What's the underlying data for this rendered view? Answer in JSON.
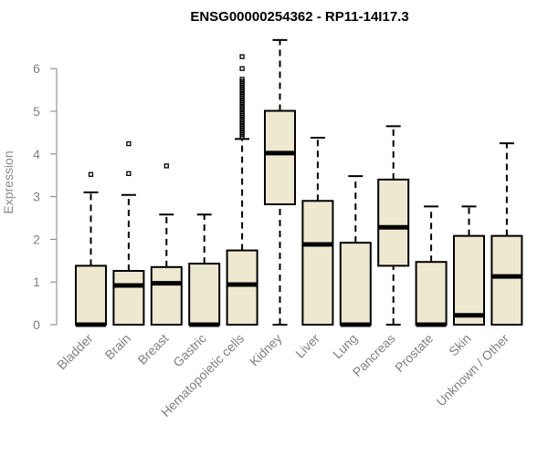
{
  "chart_data": {
    "type": "boxplot",
    "title": "ENSG00000254362 - RP11-14I17.3",
    "xlabel": "",
    "ylabel": "Expression",
    "ylim": [
      0,
      6.7
    ],
    "yticks": [
      "0",
      "1",
      "2",
      "3",
      "4",
      "5",
      "6"
    ],
    "box_fill": "#efe8d0",
    "box_stroke": "#000000",
    "axis_color": "#808080",
    "categories": [
      "Bladder",
      "Brain",
      "Breast",
      "Gastric",
      "Hematopoietic cells",
      "Kidney",
      "Liver",
      "Lung",
      "Pancreas",
      "Prostate",
      "Skin",
      "Unknown / Other"
    ],
    "boxes": [
      {
        "name": "Bladder",
        "min": 0,
        "q1": 0,
        "median": 0,
        "q3": 1.38,
        "max": 3.1,
        "outliers": [
          3.52
        ]
      },
      {
        "name": "Brain",
        "min": 0,
        "q1": 0,
        "median": 0.92,
        "q3": 1.26,
        "max": 3.04,
        "outliers": [
          3.54,
          4.24
        ]
      },
      {
        "name": "Breast",
        "min": 0,
        "q1": 0,
        "median": 0.97,
        "q3": 1.35,
        "max": 2.58,
        "outliers": [
          3.72
        ]
      },
      {
        "name": "Gastric",
        "min": 0,
        "q1": 0,
        "median": 0,
        "q3": 1.43,
        "max": 2.58,
        "outliers": []
      },
      {
        "name": "Hematopoietic cells",
        "min": 0,
        "q1": 0,
        "median": 0.94,
        "q3": 1.74,
        "max": 4.35,
        "outliers": [
          4.4,
          4.45,
          4.5,
          4.55,
          4.6,
          4.65,
          4.7,
          4.75,
          4.8,
          4.85,
          4.9,
          4.95,
          5.0,
          5.05,
          5.1,
          5.15,
          5.2,
          5.25,
          5.3,
          5.35,
          5.4,
          5.45,
          5.5,
          5.55,
          5.6,
          5.65,
          5.7,
          5.75,
          6.0,
          6.28
        ]
      },
      {
        "name": "Kidney",
        "min": 0,
        "q1": 2.82,
        "median": 4.02,
        "q3": 5.01,
        "max": 6.67,
        "outliers": []
      },
      {
        "name": "Liver",
        "min": 0,
        "q1": 0,
        "median": 1.88,
        "q3": 2.9,
        "max": 4.38,
        "outliers": []
      },
      {
        "name": "Lung",
        "min": 0,
        "q1": 0,
        "median": 0,
        "q3": 1.92,
        "max": 3.48,
        "outliers": []
      },
      {
        "name": "Pancreas",
        "min": 0,
        "q1": 1.38,
        "median": 2.28,
        "q3": 3.4,
        "max": 4.65,
        "outliers": []
      },
      {
        "name": "Prostate",
        "min": 0,
        "q1": 0,
        "median": 0,
        "q3": 1.47,
        "max": 2.77,
        "outliers": []
      },
      {
        "name": "Skin",
        "min": 0,
        "q1": 0,
        "median": 0.22,
        "q3": 2.08,
        "max": 2.77,
        "outliers": []
      },
      {
        "name": "Unknown / Other",
        "min": 0,
        "q1": 0,
        "median": 1.13,
        "q3": 2.08,
        "max": 4.25,
        "outliers": []
      }
    ]
  }
}
